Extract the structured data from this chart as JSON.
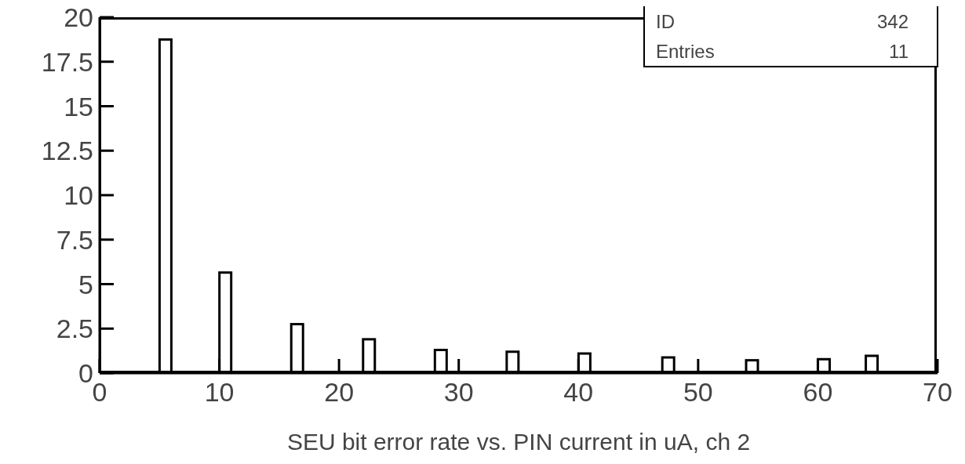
{
  "chart_data": {
    "type": "bar",
    "xlabel": "SEU bit error rate vs. PIN current in uA, ch 2",
    "annotations": [
      "ID",
      "342",
      "Entries",
      "11"
    ],
    "x": [
      5.5,
      10.5,
      16.5,
      22.5,
      28.5,
      34.5,
      40.5,
      47.5,
      54.5,
      60.5,
      64.5
    ],
    "values": [
      18.75,
      5.65,
      2.75,
      1.9,
      1.3,
      1.2,
      1.1,
      0.88,
      0.72,
      0.78,
      0.97
    ],
    "color": "#ffffff",
    "xlim": [
      0,
      70
    ],
    "xticks": [
      0,
      10,
      20,
      30,
      40,
      50,
      60,
      70
    ],
    "ylim": [
      0,
      20
    ],
    "yticks": [
      0,
      2.5,
      5,
      7.5,
      10,
      12.5,
      15,
      17.5,
      20
    ],
    "grid": false,
    "legend": false
  }
}
